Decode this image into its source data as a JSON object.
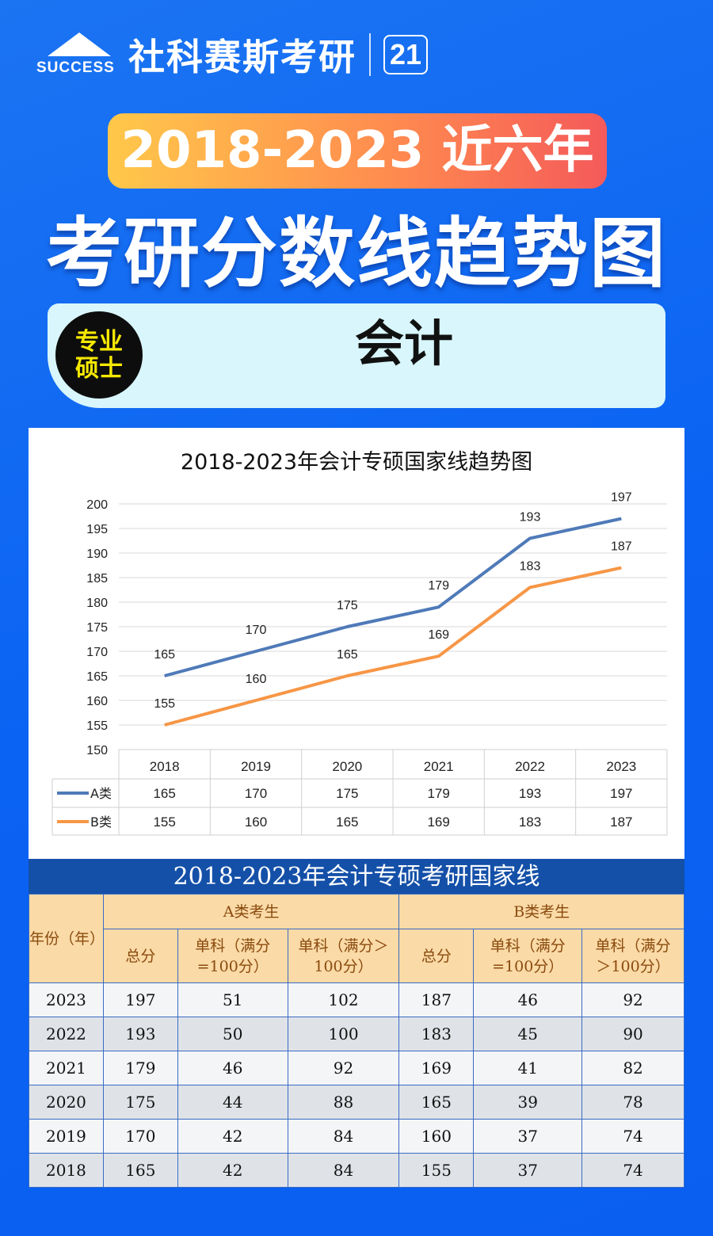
{
  "brand": {
    "logo_text": "SUCCESS",
    "name": "社科赛斯考研",
    "anniversary": "21"
  },
  "pill": "2018-2023 近六年",
  "title": "考研分数线趋势图",
  "subject": {
    "badge_line1": "专业",
    "badge_line2": "硕士",
    "major": "会计"
  },
  "colors": {
    "A": "#4f7ab8",
    "B": "#f79646",
    "header_bg": "#1450a8",
    "th_bg": "#fadaa6"
  },
  "chart_data": {
    "type": "line",
    "title": "2018-2023年会计专硕国家线趋势图",
    "categories": [
      "2018",
      "2019",
      "2020",
      "2021",
      "2022",
      "2023"
    ],
    "series": [
      {
        "name": "A类",
        "values": [
          165,
          170,
          175,
          179,
          193,
          197
        ]
      },
      {
        "name": "B类",
        "values": [
          155,
          160,
          165,
          169,
          183,
          187
        ]
      }
    ],
    "ylim": [
      150,
      200
    ],
    "yticks": [
      150,
      155,
      160,
      165,
      170,
      175,
      180,
      185,
      190,
      195,
      200
    ],
    "grid": true,
    "legend": "data-table-below"
  },
  "table": {
    "caption": "2018-2023年会计专硕考研国家线",
    "year_header": "年份（年）",
    "groupA": "A类考生",
    "groupB": "B类考生",
    "cols": [
      "总分",
      "单科（满分=100分）",
      "单科（满分＞100分）",
      "总分",
      "单科（满分=100分）",
      "单科（满分＞100分）"
    ],
    "rows": [
      [
        "2023",
        "197",
        "51",
        "102",
        "187",
        "46",
        "92"
      ],
      [
        "2022",
        "193",
        "50",
        "100",
        "183",
        "45",
        "90"
      ],
      [
        "2021",
        "179",
        "46",
        "92",
        "169",
        "41",
        "82"
      ],
      [
        "2020",
        "175",
        "44",
        "88",
        "165",
        "39",
        "78"
      ],
      [
        "2019",
        "170",
        "42",
        "84",
        "160",
        "37",
        "74"
      ],
      [
        "2018",
        "165",
        "42",
        "84",
        "155",
        "37",
        "74"
      ]
    ]
  }
}
